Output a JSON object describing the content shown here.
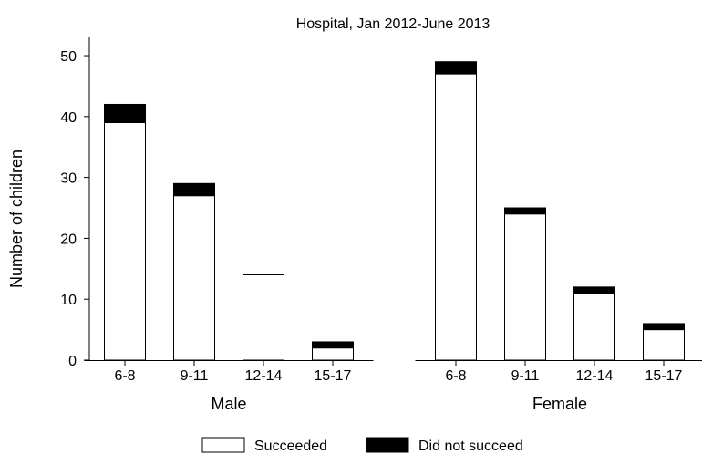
{
  "chart_data": {
    "type": "bar",
    "stacked": true,
    "title": "Hospital, Jan 2012-June 2013",
    "xlabel": "",
    "ylabel": "Number of children",
    "ylim": [
      0,
      53
    ],
    "yticks": [
      0,
      10,
      20,
      30,
      40,
      50
    ],
    "grid": false,
    "legend_position": "bottom",
    "groups": [
      {
        "name": "Male",
        "categories": [
          "6-8",
          "9-11",
          "12-14",
          "15-17"
        ],
        "series": [
          {
            "name": "Succeeded",
            "values": [
              39,
              27,
              14,
              2
            ]
          },
          {
            "name": "Did not succeed",
            "values": [
              3,
              2,
              0,
              1
            ]
          }
        ]
      },
      {
        "name": "Female",
        "categories": [
          "6-8",
          "9-11",
          "12-14",
          "15-17"
        ],
        "series": [
          {
            "name": "Succeeded",
            "values": [
              47,
              24,
              11,
              5
            ]
          },
          {
            "name": "Did not succeed",
            "values": [
              2,
              1,
              1,
              1
            ]
          }
        ]
      }
    ],
    "colors": {
      "Succeeded": "#ffffff",
      "Did not succeed": "#000000"
    }
  }
}
